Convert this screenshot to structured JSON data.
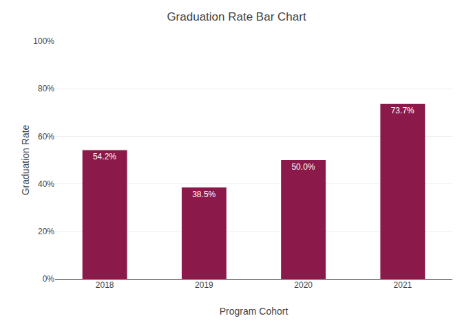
{
  "chart_data": {
    "type": "bar",
    "title": "Graduation Rate Bar Chart",
    "xlabel": "Program Cohort",
    "ylabel": "Graduation Rate",
    "categories": [
      "2018",
      "2019",
      "2020",
      "2021"
    ],
    "values": [
      54.2,
      38.5,
      50.0,
      73.7
    ],
    "value_labels": [
      "54.2%",
      "38.5%",
      "50.0%",
      "73.7%"
    ],
    "color": "#8B1A4A",
    "ylim": [
      0,
      100
    ],
    "yticks": [
      {
        "value": 0,
        "label": "0%"
      },
      {
        "value": 20,
        "label": "20%"
      },
      {
        "value": 40,
        "label": "40%"
      },
      {
        "value": 60,
        "label": "60%"
      },
      {
        "value": 80,
        "label": "80%"
      },
      {
        "value": 100,
        "label": "100%"
      }
    ],
    "grid": true,
    "data_labels": true
  }
}
